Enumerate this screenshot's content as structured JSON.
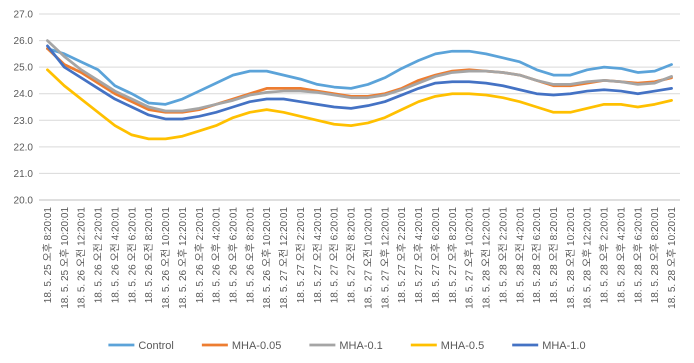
{
  "chart_data": {
    "type": "line",
    "categories": [
      "18. 5. 25 오후 8:20:01",
      "18. 5. 25 오후 10:20:01",
      "18. 5. 26 오전 12:20:01",
      "18. 5. 26 오전 2:20:01",
      "18. 5. 26 오전 4:20:01",
      "18. 5. 26 오전 6:20:01",
      "18. 5. 26 오전 8:20:01",
      "18. 5. 26 오전 10:20:01",
      "18. 5. 26 오후 12:20:01",
      "18. 5. 26 오후 2:20:01",
      "18. 5. 26 오후 4:20:01",
      "18. 5. 26 오후 6:20:01",
      "18. 5. 26 오후 8:20:01",
      "18. 5. 26 오후 10:20:01",
      "18. 5. 27 오전 12:20:01",
      "18. 5. 27 오전 2:20:01",
      "18. 5. 27 오전 4:20:01",
      "18. 5. 27 오전 6:20:01",
      "18. 5. 27 오전 8:20:01",
      "18. 5. 27 오전 10:20:01",
      "18. 5. 27 오후 12:20:01",
      "18. 5. 27 오후 2:20:01",
      "18. 5. 27 오후 4:20:01",
      "18. 5. 27 오후 6:20:01",
      "18. 5. 27 오후 8:20:01",
      "18. 5. 27 오후 10:20:01",
      "18. 5. 28 오전 12:20:01",
      "18. 5. 28 오전 2:20:01",
      "18. 5. 28 오전 4:20:01",
      "18. 5. 28 오전 6:20:01",
      "18. 5. 28 오전 8:20:01",
      "18. 5. 28 오전 10:20:01",
      "18. 5. 28 오후 12:20:01",
      "18. 5. 28 오후 2:20:01",
      "18. 5. 28 오후 4:20:01",
      "18. 5. 28 오후 6:20:01",
      "18. 5. 28 오후 8:20:01",
      "18. 5. 28 오후 10:20:01"
    ],
    "series": [
      {
        "name": "Control",
        "color": "#5ba3d9",
        "values": [
          25.7,
          25.5,
          25.2,
          24.9,
          24.3,
          24.0,
          23.65,
          23.6,
          23.8,
          24.1,
          24.4,
          24.7,
          24.85,
          24.85,
          24.7,
          24.55,
          24.35,
          24.25,
          24.2,
          24.35,
          24.6,
          24.95,
          25.25,
          25.5,
          25.6,
          25.6,
          25.5,
          25.35,
          25.2,
          24.9,
          24.7,
          24.7,
          24.9,
          25.0,
          24.95,
          24.8,
          24.85,
          25.1
        ]
      },
      {
        "name": "MHA-0.05",
        "color": "#ed7d31",
        "values": [
          25.7,
          25.1,
          24.8,
          24.4,
          24.0,
          23.7,
          23.4,
          23.3,
          23.3,
          23.4,
          23.6,
          23.8,
          24.0,
          24.2,
          24.2,
          24.2,
          24.1,
          24.0,
          23.9,
          23.9,
          24.0,
          24.2,
          24.5,
          24.7,
          24.85,
          24.9,
          24.85,
          24.8,
          24.7,
          24.5,
          24.3,
          24.3,
          24.4,
          24.5,
          24.45,
          24.4,
          24.45,
          24.6
        ]
      },
      {
        "name": "MHA-0.1",
        "color": "#a5a5a5",
        "values": [
          26.0,
          25.4,
          24.9,
          24.5,
          24.1,
          23.8,
          23.5,
          23.35,
          23.35,
          23.45,
          23.6,
          23.75,
          23.95,
          24.05,
          24.1,
          24.1,
          24.05,
          23.95,
          23.85,
          23.85,
          23.95,
          24.15,
          24.4,
          24.65,
          24.8,
          24.85,
          24.85,
          24.8,
          24.7,
          24.5,
          24.35,
          24.35,
          24.45,
          24.5,
          24.45,
          24.35,
          24.4,
          24.65
        ]
      },
      {
        "name": "MHA-0.5",
        "color": "#ffc000",
        "values": [
          24.9,
          24.3,
          23.8,
          23.3,
          22.8,
          22.45,
          22.3,
          22.3,
          22.4,
          22.6,
          22.8,
          23.1,
          23.3,
          23.4,
          23.3,
          23.15,
          23.0,
          22.85,
          22.8,
          22.9,
          23.1,
          23.4,
          23.7,
          23.9,
          24.0,
          24.0,
          23.95,
          23.85,
          23.7,
          23.5,
          23.3,
          23.3,
          23.45,
          23.6,
          23.6,
          23.5,
          23.6,
          23.75
        ]
      },
      {
        "name": "MHA-1.0",
        "color": "#4472c4",
        "values": [
          25.8,
          25.0,
          24.6,
          24.2,
          23.8,
          23.5,
          23.2,
          23.05,
          23.05,
          23.15,
          23.3,
          23.5,
          23.7,
          23.8,
          23.8,
          23.7,
          23.6,
          23.5,
          23.45,
          23.55,
          23.7,
          23.95,
          24.2,
          24.4,
          24.45,
          24.45,
          24.4,
          24.3,
          24.15,
          24.0,
          23.95,
          24.0,
          24.1,
          24.15,
          24.1,
          24.0,
          24.1,
          24.2
        ]
      }
    ],
    "ylim": [
      20,
      27
    ],
    "yticks": [
      {
        "value": 20,
        "label": "20.0"
      },
      {
        "value": 21,
        "label": "21.0"
      },
      {
        "value": 22,
        "label": "22.0"
      },
      {
        "value": 23,
        "label": "23.0"
      },
      {
        "value": 24,
        "label": "24.0"
      },
      {
        "value": 25,
        "label": "25.0"
      },
      {
        "value": 26,
        "label": "26.0"
      },
      {
        "value": 27,
        "label": "27.0"
      }
    ],
    "grid": true,
    "legend": "bottom"
  }
}
